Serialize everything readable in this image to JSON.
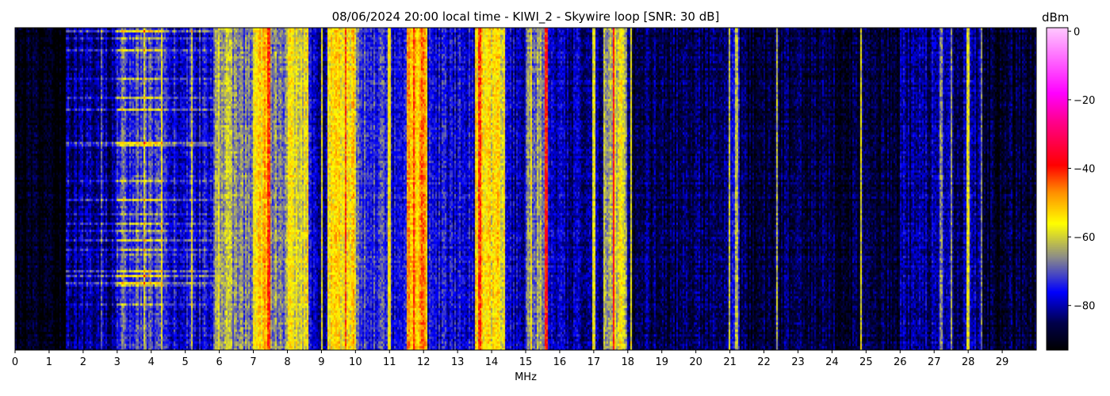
{
  "chart_data": {
    "type": "heatmap",
    "title": "08/06/2024 20:00 local time - KIWI_2 - Skywire loop [SNR: 30 dB]",
    "xlabel": "MHz",
    "ylabel": "",
    "xlim": [
      0,
      30
    ],
    "xticks": [
      0,
      1,
      2,
      3,
      4,
      5,
      6,
      7,
      8,
      9,
      10,
      11,
      12,
      13,
      14,
      15,
      16,
      17,
      18,
      19,
      20,
      21,
      22,
      23,
      24,
      25,
      26,
      27,
      28,
      29
    ],
    "colorbar": {
      "label": "dBm",
      "range": [
        -93,
        1
      ],
      "ticks": [
        0,
        -20,
        -40,
        -60,
        -80
      ],
      "tick_labels": [
        "0",
        "−20",
        "−40",
        "−60",
        "−80"
      ],
      "colormap": [
        {
          "dbm": -93,
          "color": "#000000"
        },
        {
          "dbm": -85,
          "color": "#00004a"
        },
        {
          "dbm": -76,
          "color": "#0000ff"
        },
        {
          "dbm": -66,
          "color": "#8a8a8a"
        },
        {
          "dbm": -56,
          "color": "#ffff00"
        },
        {
          "dbm": -47,
          "color": "#ff9000"
        },
        {
          "dbm": -39,
          "color": "#ff0000"
        },
        {
          "dbm": -26,
          "color": "#ff0090"
        },
        {
          "dbm": -18,
          "color": "#ff00ff"
        },
        {
          "dbm": 1,
          "color": "#ffc8ff"
        }
      ]
    },
    "bands_mhz_dbm": [
      [
        0.0,
        1.5,
        -92
      ],
      [
        1.5,
        3.0,
        -82
      ],
      [
        3.0,
        4.3,
        -72
      ],
      [
        4.3,
        5.8,
        -77
      ],
      [
        5.8,
        6.4,
        -64
      ],
      [
        6.4,
        7.0,
        -68
      ],
      [
        7.0,
        7.5,
        -52
      ],
      [
        7.5,
        8.0,
        -67
      ],
      [
        8.0,
        8.6,
        -58
      ],
      [
        8.6,
        9.2,
        -79
      ],
      [
        9.2,
        10.0,
        -54
      ],
      [
        10.0,
        11.0,
        -72
      ],
      [
        11.0,
        11.5,
        -77
      ],
      [
        11.5,
        12.1,
        -50
      ],
      [
        12.1,
        13.5,
        -77
      ],
      [
        13.5,
        14.4,
        -56
      ],
      [
        14.4,
        15.0,
        -79
      ],
      [
        15.0,
        15.6,
        -66
      ],
      [
        15.6,
        17.3,
        -81
      ],
      [
        17.3,
        18.0,
        -62
      ],
      [
        18.0,
        21.0,
        -85
      ],
      [
        21.0,
        21.3,
        -80
      ],
      [
        21.3,
        26.0,
        -87
      ],
      [
        26.0,
        28.4,
        -82
      ],
      [
        28.4,
        30.0,
        -88
      ]
    ],
    "carriers_mhz_dbm": [
      [
        2.55,
        -70
      ],
      [
        3.8,
        -60
      ],
      [
        4.3,
        -58
      ],
      [
        5.2,
        -60
      ],
      [
        6.0,
        -58
      ],
      [
        7.45,
        -42
      ],
      [
        8.5,
        -55
      ],
      [
        9.0,
        -58
      ],
      [
        9.7,
        -42
      ],
      [
        11.0,
        -56
      ],
      [
        11.7,
        -42
      ],
      [
        11.95,
        -44
      ],
      [
        13.65,
        -42
      ],
      [
        14.1,
        -55
      ],
      [
        15.15,
        -56
      ],
      [
        15.6,
        -40
      ],
      [
        17.0,
        -58
      ],
      [
        17.6,
        -38
      ],
      [
        17.8,
        -55
      ],
      [
        18.1,
        -58
      ],
      [
        21.0,
        -60
      ],
      [
        21.2,
        -62
      ],
      [
        22.4,
        -62
      ],
      [
        24.85,
        -58
      ],
      [
        27.2,
        -66
      ],
      [
        27.5,
        -64
      ],
      [
        28.0,
        -58
      ],
      [
        28.4,
        -66
      ]
    ]
  }
}
